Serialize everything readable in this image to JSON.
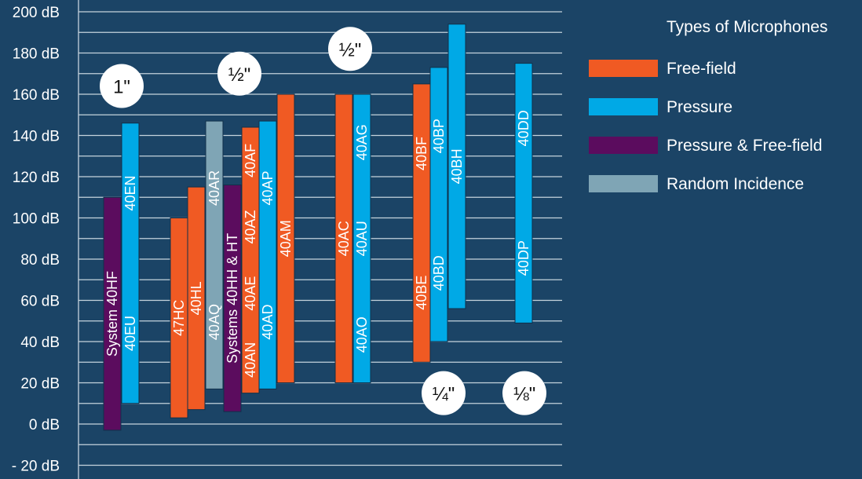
{
  "chart_data": {
    "type": "range-bar",
    "ylabel": "dB",
    "ylim": [
      -20,
      200
    ],
    "yticks": [
      "- 20 dB",
      "0 dB",
      "20 dB",
      "40 dB",
      "60 dB",
      "80 dB",
      "100 dB",
      "120 dB",
      "140 dB",
      "160 dB",
      "180 dB",
      "200 dB"
    ],
    "ytick_values": [
      -20,
      0,
      20,
      40,
      60,
      80,
      100,
      120,
      140,
      160,
      180,
      200
    ],
    "grid": true,
    "legend": {
      "title": "Types of Microphones",
      "position": "top-right",
      "items": [
        {
          "key": "free_field",
          "label": "Free-field",
          "color": "#f05a23"
        },
        {
          "key": "pressure",
          "label": "Pressure",
          "color": "#00a9e6"
        },
        {
          "key": "pressure_free_field",
          "label": "Pressure & Free-field",
          "color": "#5b0c5e"
        },
        {
          "key": "random_incidence",
          "label": "Random Incidence",
          "color": "#7fa5b5"
        }
      ]
    },
    "groups": [
      {
        "size_label": "1\"",
        "label_level": 164,
        "bars": [
          {
            "type": "pressure_free_field",
            "low": -3,
            "high": 110,
            "labels": [
              "System 40HF"
            ]
          },
          {
            "type": "pressure",
            "low": 10,
            "high": 146,
            "labels": [
              "40EU",
              "40EN"
            ]
          }
        ]
      },
      {
        "size_label": "½\"",
        "label_level": 170,
        "bars": [
          {
            "type": "free_field",
            "low": 3,
            "high": 100,
            "labels": [
              "47HC"
            ]
          },
          {
            "type": "free_field",
            "low": 7,
            "high": 115,
            "labels": [
              "40HL"
            ]
          },
          {
            "type": "random_incidence",
            "low": 17,
            "high": 147,
            "labels": [
              "40AQ",
              "40AR"
            ]
          },
          {
            "type": "pressure_free_field",
            "low": 6,
            "high": 116,
            "labels": [
              "Systems 40HH & HT"
            ]
          },
          {
            "type": "free_field",
            "low": 15,
            "high": 144,
            "labels": [
              "40AN",
              "40AE",
              "40AZ",
              "40AF"
            ]
          },
          {
            "type": "pressure",
            "low": 17,
            "high": 147,
            "labels": [
              "40AD",
              "40AP"
            ]
          },
          {
            "type": "free_field",
            "low": 20,
            "high": 160,
            "labels": [
              "40AM"
            ]
          }
        ]
      },
      {
        "size_label": "½\"",
        "label_level": 182,
        "bars": [
          {
            "type": "free_field",
            "low": 20,
            "high": 160,
            "labels": [
              "40AC"
            ]
          },
          {
            "type": "pressure",
            "low": 20,
            "high": 160,
            "labels": [
              "40AO",
              "40AU",
              "40AG"
            ]
          }
        ]
      },
      {
        "size_label": "¼\"",
        "label_level": 15,
        "bars": [
          {
            "type": "free_field",
            "low": 30,
            "high": 165,
            "labels": [
              "40BE",
              "40BF"
            ]
          },
          {
            "type": "pressure",
            "low": 40,
            "high": 173,
            "labels": [
              "40BD",
              "40BP"
            ]
          },
          {
            "type": "pressure",
            "low": 56,
            "high": 194,
            "labels": [
              "40BH"
            ]
          }
        ]
      },
      {
        "size_label": "⅛\"",
        "label_level": 15,
        "bars": [
          {
            "type": "pressure",
            "low": 49,
            "high": 175,
            "labels": [
              "40DP",
              "40DD"
            ]
          }
        ]
      }
    ]
  }
}
